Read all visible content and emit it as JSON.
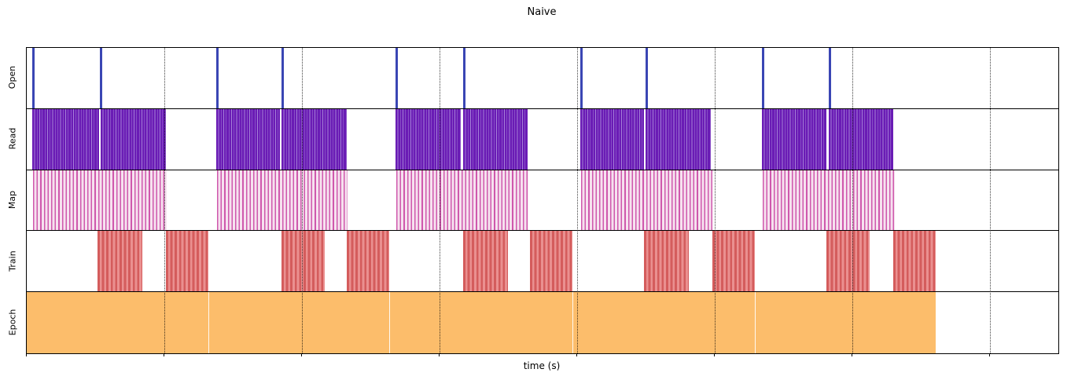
{
  "chart_data": {
    "type": "timeline",
    "title": "Naive",
    "xlabel": "time (s)",
    "x_range": [
      0,
      150
    ],
    "x_ticks": [
      0,
      20,
      40,
      60,
      80,
      100,
      120,
      140
    ],
    "grid": "vertical dotted lines at x ticks, drawn over bars",
    "legend": "none",
    "rows": [
      {
        "label": "Open",
        "kind": "event",
        "color": "#3a46b4",
        "events": [
          0.8,
          10.6,
          27.6,
          37.0,
          53.6,
          63.5,
          80.5,
          90.0,
          106.9,
          116.6
        ]
      },
      {
        "label": "Read",
        "kind": "read",
        "color": "#6a1cb5",
        "intervals": [
          [
            0.8,
            10.5
          ],
          [
            10.7,
            20.2
          ],
          [
            27.6,
            36.8
          ],
          [
            37.0,
            46.5
          ],
          [
            53.6,
            63.1
          ],
          [
            63.5,
            72.8
          ],
          [
            80.5,
            89.7
          ],
          [
            90.0,
            99.5
          ],
          [
            106.9,
            116.3
          ],
          [
            116.6,
            126.0
          ]
        ]
      },
      {
        "label": "Map",
        "kind": "map",
        "color": "#cf58ad",
        "intervals": [
          [
            0.9,
            20.4
          ],
          [
            27.7,
            46.7
          ],
          [
            53.7,
            73.0
          ],
          [
            80.6,
            99.7
          ],
          [
            107.0,
            126.2
          ]
        ]
      },
      {
        "label": "Train",
        "kind": "train",
        "color": "#d45c5c",
        "intervals": [
          [
            10.3,
            16.8
          ],
          [
            20.2,
            26.4
          ],
          [
            37.0,
            43.3
          ],
          [
            46.5,
            52.7
          ],
          [
            63.5,
            70.0
          ],
          [
            73.2,
            79.4
          ],
          [
            89.7,
            96.3
          ],
          [
            99.7,
            105.9
          ],
          [
            116.3,
            122.6
          ],
          [
            126.0,
            132.2
          ]
        ]
      },
      {
        "label": "Epoch",
        "kind": "epoch",
        "color": "#fcbd6b",
        "intervals": [
          [
            0.0,
            26.4
          ],
          [
            26.4,
            52.7
          ],
          [
            52.7,
            79.4
          ],
          [
            79.4,
            105.9
          ],
          [
            105.9,
            132.2
          ]
        ]
      }
    ]
  }
}
